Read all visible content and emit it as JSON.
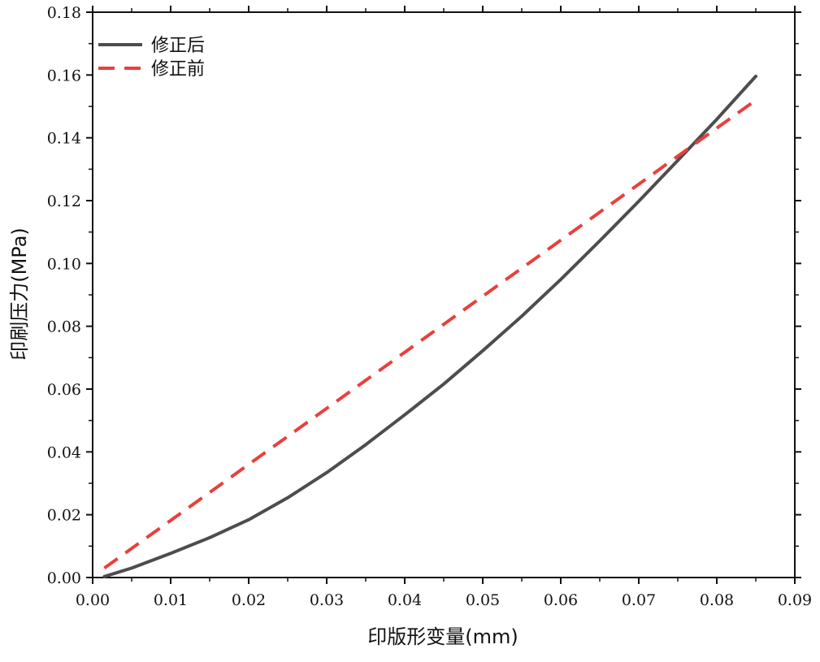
{
  "chart_data": {
    "type": "line",
    "title": "",
    "xlabel": "印版形变量(mm)",
    "ylabel": "印刷压力(MPa)",
    "xlim": [
      0.0,
      0.09
    ],
    "ylim": [
      0.0,
      0.18
    ],
    "xticks": [
      "0.00",
      "0.01",
      "0.02",
      "0.03",
      "0.04",
      "0.05",
      "0.06",
      "0.07",
      "0.08",
      "0.09"
    ],
    "yticks": [
      "0.00",
      "0.02",
      "0.04",
      "0.06",
      "0.08",
      "0.10",
      "0.12",
      "0.14",
      "0.16",
      "0.18"
    ],
    "xtick_values": [
      0,
      0.01,
      0.02,
      0.03,
      0.04,
      0.05,
      0.06,
      0.07,
      0.08,
      0.09
    ],
    "ytick_values": [
      0,
      0.02,
      0.04,
      0.06,
      0.08,
      0.1,
      0.12,
      0.14,
      0.16,
      0.18
    ],
    "grid": false,
    "legend_position": "top-left",
    "series": [
      {
        "name": "修正后",
        "color": "#4d4d4d",
        "style": "solid",
        "x": [
          0.0015,
          0.005,
          0.01,
          0.015,
          0.02,
          0.025,
          0.03,
          0.035,
          0.04,
          0.045,
          0.05,
          0.055,
          0.06,
          0.065,
          0.07,
          0.075,
          0.08,
          0.085
        ],
        "y": [
          0.0003,
          0.003,
          0.0077,
          0.0127,
          0.0184,
          0.0254,
          0.0334,
          0.0423,
          0.0518,
          0.0616,
          0.0722,
          0.0832,
          0.0949,
          0.1072,
          0.1198,
          0.1328,
          0.1459,
          0.1596
        ]
      },
      {
        "name": "修正前",
        "color": "#e8403d",
        "style": "dashed",
        "x": [
          0.0015,
          0.085
        ],
        "y": [
          0.003,
          0.152
        ]
      }
    ]
  }
}
